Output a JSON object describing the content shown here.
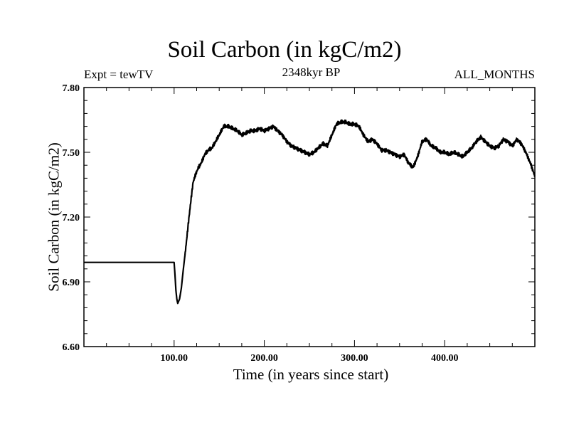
{
  "chart_data": {
    "type": "line",
    "title": "Soil Carbon (in kgC/m2)",
    "expt_label": "Expt = tewTV",
    "period_label": "2348kyr BP",
    "months_label": "ALL_MONTHS",
    "xlabel": "Time (in years since start)",
    "ylabel": "Soil Carbon (in kgC/m2)",
    "xlim": [
      0,
      500
    ],
    "ylim": [
      6.6,
      7.8
    ],
    "x_ticks": [
      100,
      200,
      300,
      400
    ],
    "x_tick_labels": [
      "100.00",
      "200.00",
      "300.00",
      "400.00"
    ],
    "y_ticks": [
      6.6,
      6.9,
      7.2,
      7.5,
      7.8
    ],
    "y_tick_labels": [
      "6.60",
      "6.90",
      "7.20",
      "7.50",
      "7.80"
    ],
    "series": [
      {
        "name": "Soil Carbon",
        "x": [
          0,
          100,
          101,
          102,
          103,
          104,
          106,
          108,
          110,
          113,
          116,
          119,
          121,
          124,
          127,
          130,
          134,
          138,
          142,
          146,
          150,
          155,
          160,
          165,
          170,
          175,
          180,
          185,
          190,
          195,
          200,
          205,
          210,
          215,
          220,
          225,
          230,
          235,
          240,
          245,
          250,
          255,
          260,
          265,
          270,
          275,
          280,
          285,
          290,
          295,
          300,
          305,
          310,
          315,
          320,
          325,
          330,
          335,
          340,
          345,
          350,
          355,
          360,
          365,
          370,
          375,
          380,
          385,
          390,
          395,
          400,
          405,
          410,
          415,
          420,
          425,
          430,
          435,
          440,
          445,
          450,
          455,
          460,
          465,
          470,
          475,
          480,
          485,
          490,
          495,
          500
        ],
        "values": [
          6.99,
          6.99,
          6.93,
          6.86,
          6.82,
          6.8,
          6.82,
          6.87,
          6.95,
          7.06,
          7.18,
          7.29,
          7.36,
          7.4,
          7.43,
          7.45,
          7.49,
          7.51,
          7.52,
          7.55,
          7.58,
          7.62,
          7.62,
          7.61,
          7.6,
          7.58,
          7.59,
          7.6,
          7.6,
          7.61,
          7.6,
          7.61,
          7.62,
          7.6,
          7.58,
          7.55,
          7.53,
          7.52,
          7.51,
          7.5,
          7.49,
          7.5,
          7.52,
          7.54,
          7.53,
          7.58,
          7.63,
          7.64,
          7.64,
          7.63,
          7.63,
          7.62,
          7.58,
          7.55,
          7.56,
          7.54,
          7.51,
          7.51,
          7.5,
          7.49,
          7.48,
          7.49,
          7.45,
          7.43,
          7.48,
          7.55,
          7.56,
          7.53,
          7.52,
          7.5,
          7.5,
          7.49,
          7.5,
          7.49,
          7.48,
          7.5,
          7.52,
          7.55,
          7.57,
          7.55,
          7.53,
          7.52,
          7.53,
          7.56,
          7.55,
          7.53,
          7.56,
          7.54,
          7.5,
          7.45,
          7.39
        ]
      }
    ]
  }
}
